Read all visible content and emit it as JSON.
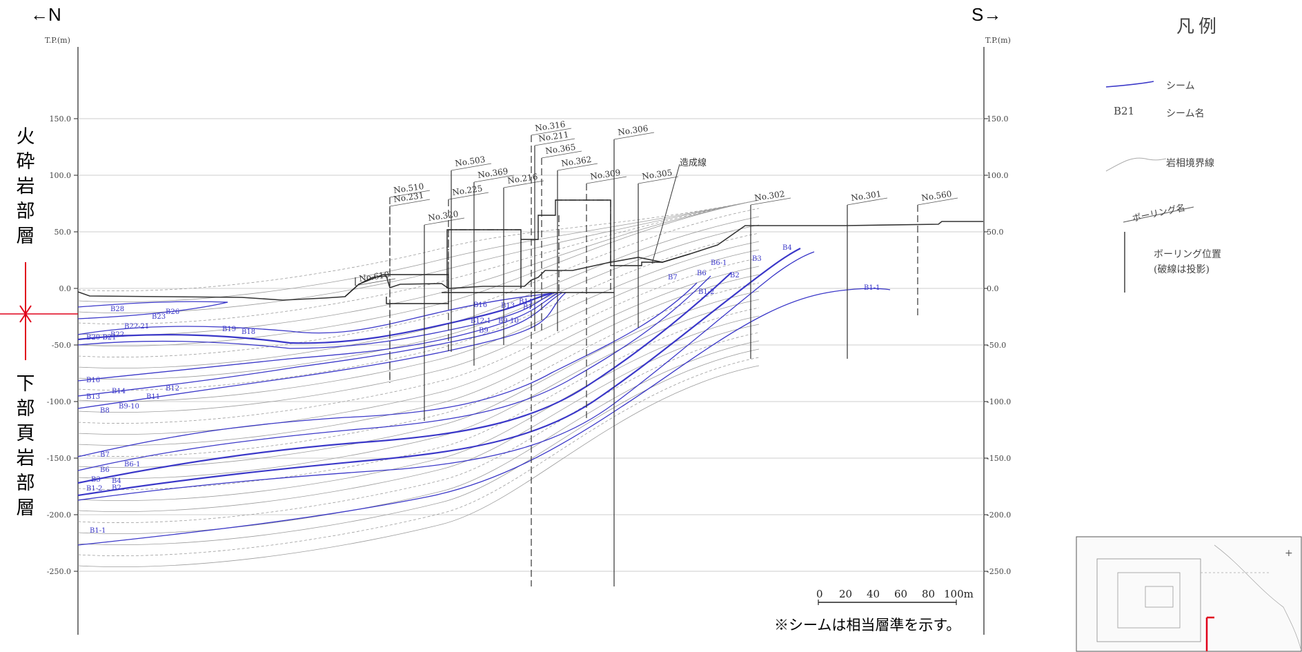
{
  "direction": {
    "north": "←N",
    "south": "S→"
  },
  "upper_layer_label": "火砕岩部層",
  "lower_layer_label": "下部頁岩部層",
  "axis": {
    "unit_label": "T.P.(m)",
    "ticks": [
      "150.0",
      "100.0",
      "50.0",
      "0.0",
      "-50.0",
      "-100.0",
      "-150.0",
      "-200.0",
      "-250.0"
    ]
  },
  "boreholes": [
    "No.610",
    "No.510",
    "No.231",
    "No.320",
    "No.225",
    "No.503",
    "No.369",
    "No.216",
    "No.316",
    "No.211",
    "No.365",
    "No.362",
    "No.309",
    "No.306",
    "No.305",
    "No.302",
    "No.301",
    "No.560"
  ],
  "fill_line_label": "造成線",
  "seams_left": [
    "B28",
    "B26",
    "B23",
    "B22-21",
    "B22",
    "B20-B21",
    "B19",
    "B18",
    "B16",
    "B14",
    "B13",
    "B12",
    "B11",
    "B9-10",
    "B8",
    "B7",
    "B6",
    "B6-1",
    "B3",
    "B4",
    "B1-2",
    "B2",
    "B1-1"
  ],
  "seams_center": [
    "B16",
    "B13",
    "B12-1",
    "B11",
    "B9",
    "B9-10",
    "B14"
  ],
  "seams_right": [
    "B7",
    "B6",
    "B6-1",
    "B2",
    "B3",
    "B4",
    "B1-2",
    "B1-1"
  ],
  "scale_labels": [
    "0",
    "20",
    "40",
    "60",
    "80",
    "100m"
  ],
  "note": "※シームは相当層準を示す。",
  "legend": {
    "title": "凡例",
    "seam": "シーム",
    "seam_name_sample": "B21",
    "seam_name": "シーム名",
    "facies_boundary": "岩相境界線",
    "boring_name": "ボーリング名",
    "boring_position": "ボーリング位置",
    "boring_position_note": "(破線は投影)"
  },
  "colors": {
    "seam": "#3a37c8",
    "facies": "#9a9a9a",
    "grid": "#bdbdbd",
    "marker": "#e0001a"
  }
}
